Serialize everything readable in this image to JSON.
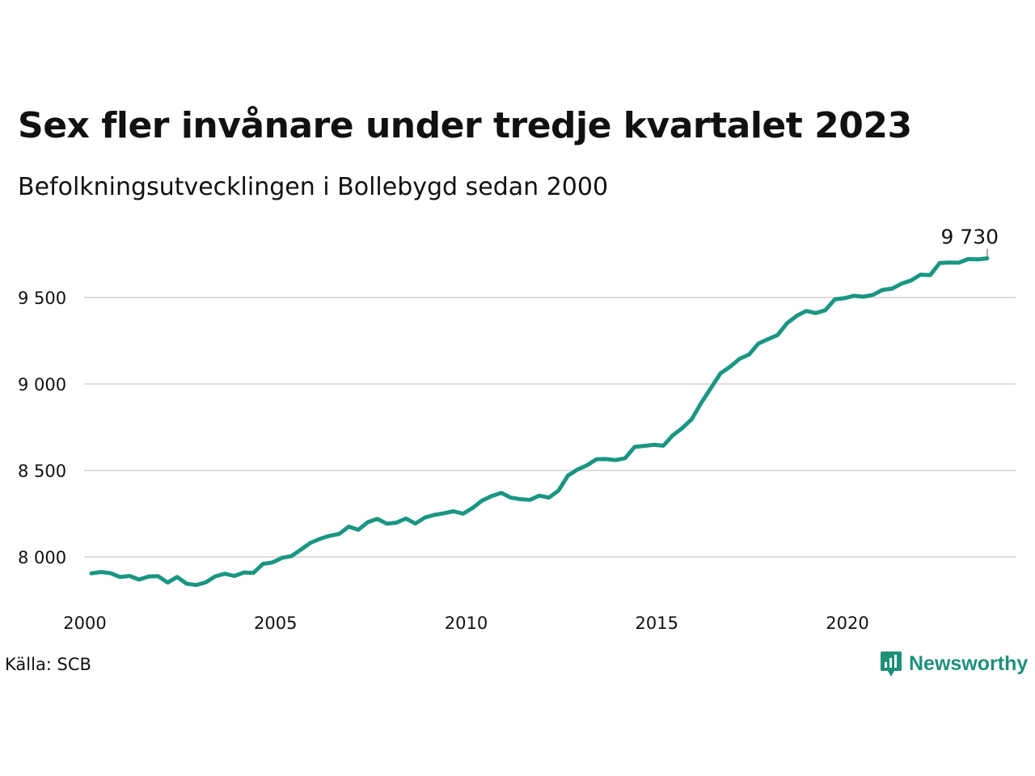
{
  "header": {
    "title": "Sex fler invånare under tredje kvartalet 2023",
    "subtitle": "Befolkningsutvecklingen i Bollebygd sedan 2000"
  },
  "footer": {
    "source": "Källa: SCB",
    "brand": "Newsworthy",
    "brand_icon": "newsworthy-logo-icon"
  },
  "colors": {
    "line": "#1a9682",
    "grid": "#dddddd",
    "text": "#111111",
    "brand": "#1f8f7a"
  },
  "chart_data": {
    "type": "line",
    "title": "Sex fler invånare under tredje kvartalet 2023",
    "subtitle": "Befolkningsutvecklingen i Bollebygd sedan 2000",
    "xlabel": "",
    "ylabel": "",
    "xlim": [
      2000,
      2024.5
    ],
    "ylim": [
      7820,
      9800
    ],
    "x_ticks": [
      2000,
      2005,
      2010,
      2015,
      2020
    ],
    "x_tick_labels": [
      "2000",
      "2005",
      "2010",
      "2015",
      "2020"
    ],
    "y_ticks": [
      8000,
      8500,
      9000,
      9500
    ],
    "y_tick_labels": [
      "8 000",
      "8 500",
      "9 000",
      "9 500"
    ],
    "grid": true,
    "end_label": "9 730",
    "series": [
      {
        "x": [
          "2000Q1",
          "2000Q2",
          "2000Q3",
          "2000Q4",
          "2001Q1",
          "2001Q2",
          "2001Q3",
          "2001Q4",
          "2002Q1",
          "2002Q2",
          "2002Q3",
          "2002Q4",
          "2003Q1",
          "2003Q2",
          "2003Q3",
          "2003Q4",
          "2004Q1",
          "2004Q2",
          "2004Q3",
          "2004Q4",
          "2005Q1",
          "2005Q2",
          "2005Q3",
          "2005Q4",
          "2006Q1",
          "2006Q2",
          "2006Q3",
          "2006Q4",
          "2007Q1",
          "2007Q2",
          "2007Q3",
          "2007Q4",
          "2008Q1",
          "2008Q2",
          "2008Q3",
          "2008Q4",
          "2009Q1",
          "2009Q2",
          "2009Q3",
          "2009Q4",
          "2010Q1",
          "2010Q2",
          "2010Q3",
          "2010Q4",
          "2011Q1",
          "2011Q2",
          "2011Q3",
          "2011Q4",
          "2012Q1",
          "2012Q2",
          "2012Q3",
          "2012Q4",
          "2013Q1",
          "2013Q2",
          "2013Q3",
          "2013Q4",
          "2014Q1",
          "2014Q2",
          "2014Q3",
          "2014Q4",
          "2015Q1",
          "2015Q2",
          "2015Q3",
          "2015Q4",
          "2016Q1",
          "2016Q2",
          "2016Q3",
          "2016Q4",
          "2017Q1",
          "2017Q2",
          "2017Q3",
          "2017Q4",
          "2018Q1",
          "2018Q2",
          "2018Q3",
          "2018Q4",
          "2019Q1",
          "2019Q2",
          "2019Q3",
          "2019Q4",
          "2020Q1",
          "2020Q2",
          "2020Q3",
          "2020Q4",
          "2021Q1",
          "2021Q2",
          "2021Q3",
          "2021Q4",
          "2022Q1",
          "2022Q2",
          "2022Q3",
          "2022Q4",
          "2023Q1",
          "2023Q2",
          "2023Q3"
        ],
        "values": [
          7905,
          7913,
          7906,
          7884,
          7890,
          7869,
          7887,
          7889,
          7852,
          7884,
          7845,
          7838,
          7853,
          7888,
          7903,
          7890,
          7910,
          7908,
          7960,
          7968,
          7995,
          8005,
          8043,
          8082,
          8105,
          8122,
          8133,
          8175,
          8157,
          8201,
          8220,
          8192,
          8198,
          8222,
          8193,
          8228,
          8243,
          8253,
          8264,
          8250,
          8283,
          8326,
          8352,
          8370,
          8343,
          8334,
          8330,
          8354,
          8343,
          8383,
          8470,
          8505,
          8530,
          8565,
          8566,
          8560,
          8571,
          8636,
          8642,
          8648,
          8643,
          8703,
          8745,
          8797,
          8892,
          8976,
          9061,
          9099,
          9145,
          9170,
          9234,
          9259,
          9283,
          9352,
          9394,
          9422,
          9410,
          9426,
          9489,
          9496,
          9510,
          9504,
          9515,
          9544,
          9551,
          9580,
          9598,
          9632,
          9629,
          9699,
          9702,
          9701,
          9722,
          9720,
          9726
        ]
      }
    ]
  }
}
